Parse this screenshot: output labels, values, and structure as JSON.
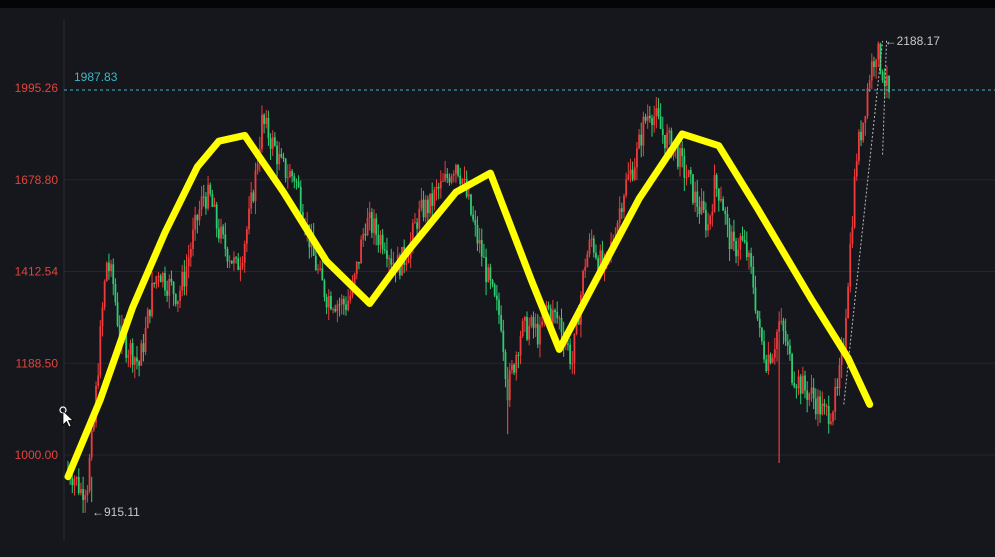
{
  "chart_data": {
    "type": "candlestick",
    "title": "",
    "xlabel": "",
    "ylabel": "",
    "y_ticks": [
      1000.0,
      1188.5,
      1412.54,
      1678.8,
      1995.26
    ],
    "y_tick_labels": [
      "1000.00",
      "1188.50",
      "1412.54",
      "1678.80",
      "1995.26"
    ],
    "log_scale": true,
    "ylim": [
      845,
      2400
    ],
    "grid": true,
    "colors": {
      "up": "#ef3b3b",
      "down": "#2ecc71",
      "trend": "#ffff00",
      "reference": "#3fb6c8",
      "axis_label": "#e0453d"
    },
    "reference_line": {
      "value": 1987.83,
      "label": "1987.83"
    },
    "annotations": {
      "high": {
        "value": 2188.17,
        "label": "←2188.17"
      },
      "low": {
        "value": 915.11,
        "label": "←915.11"
      }
    },
    "trend_line": {
      "color": "#ffff00",
      "points": [
        [
          0,
          960
        ],
        [
          15,
          1110
        ],
        [
          30,
          1320
        ],
        [
          45,
          1520
        ],
        [
          60,
          1720
        ],
        [
          70,
          1805
        ],
        [
          82,
          1825
        ],
        [
          100,
          1640
        ],
        [
          120,
          1440
        ],
        [
          140,
          1330
        ],
        [
          158,
          1470
        ],
        [
          180,
          1640
        ],
        [
          196,
          1700
        ],
        [
          215,
          1390
        ],
        [
          228,
          1220
        ],
        [
          245,
          1390
        ],
        [
          265,
          1620
        ],
        [
          285,
          1830
        ],
        [
          302,
          1790
        ],
        [
          320,
          1590
        ],
        [
          345,
          1340
        ],
        [
          362,
          1200
        ],
        [
          372,
          1100
        ]
      ]
    },
    "price_path": [
      [
        0,
        975
      ],
      [
        3,
        960
      ],
      [
        6,
        935
      ],
      [
        9,
        950
      ],
      [
        12,
        1060
      ],
      [
        15,
        1250
      ],
      [
        18,
        1440
      ],
      [
        21,
        1380
      ],
      [
        24,
        1250
      ],
      [
        27,
        1230
      ],
      [
        30,
        1215
      ],
      [
        33,
        1185
      ],
      [
        36,
        1260
      ],
      [
        39,
        1360
      ],
      [
        42,
        1420
      ],
      [
        45,
        1390
      ],
      [
        48,
        1370
      ],
      [
        51,
        1350
      ],
      [
        54,
        1400
      ],
      [
        57,
        1480
      ],
      [
        60,
        1560
      ],
      [
        63,
        1630
      ],
      [
        66,
        1620
      ],
      [
        69,
        1540
      ],
      [
        72,
        1490
      ],
      [
        75,
        1460
      ],
      [
        78,
        1420
      ],
      [
        81,
        1470
      ],
      [
        84,
        1560
      ],
      [
        87,
        1690
      ],
      [
        90,
        1870
      ],
      [
        93,
        1830
      ],
      [
        96,
        1780
      ],
      [
        99,
        1720
      ],
      [
        102,
        1700
      ],
      [
        105,
        1690
      ],
      [
        108,
        1620
      ],
      [
        111,
        1530
      ],
      [
        114,
        1450
      ],
      [
        117,
        1390
      ],
      [
        120,
        1350
      ],
      [
        123,
        1340
      ],
      [
        126,
        1330
      ],
      [
        129,
        1330
      ],
      [
        132,
        1360
      ],
      [
        135,
        1450
      ],
      [
        138,
        1550
      ],
      [
        141,
        1540
      ],
      [
        144,
        1510
      ],
      [
        147,
        1500
      ],
      [
        150,
        1450
      ],
      [
        153,
        1430
      ],
      [
        156,
        1450
      ],
      [
        159,
        1490
      ],
      [
        162,
        1560
      ],
      [
        165,
        1590
      ],
      [
        168,
        1600
      ],
      [
        171,
        1640
      ],
      [
        174,
        1660
      ],
      [
        177,
        1700
      ],
      [
        180,
        1740
      ],
      [
        183,
        1680
      ],
      [
        186,
        1600
      ],
      [
        189,
        1520
      ],
      [
        192,
        1460
      ],
      [
        195,
        1390
      ],
      [
        198,
        1330
      ],
      [
        201,
        1290
      ],
      [
        204,
        1130
      ],
      [
        207,
        1190
      ],
      [
        210,
        1260
      ],
      [
        213,
        1270
      ],
      [
        216,
        1270
      ],
      [
        219,
        1250
      ],
      [
        222,
        1320
      ],
      [
        225,
        1300
      ],
      [
        228,
        1290
      ],
      [
        231,
        1240
      ],
      [
        234,
        1190
      ],
      [
        237,
        1310
      ],
      [
        240,
        1440
      ],
      [
        243,
        1500
      ],
      [
        246,
        1450
      ],
      [
        249,
        1410
      ],
      [
        252,
        1480
      ],
      [
        255,
        1560
      ],
      [
        258,
        1650
      ],
      [
        261,
        1700
      ],
      [
        264,
        1760
      ],
      [
        267,
        1860
      ],
      [
        270,
        1920
      ],
      [
        273,
        1880
      ],
      [
        276,
        1830
      ],
      [
        279,
        1800
      ],
      [
        282,
        1780
      ],
      [
        285,
        1720
      ],
      [
        288,
        1680
      ],
      [
        291,
        1620
      ],
      [
        294,
        1580
      ],
      [
        297,
        1540
      ],
      [
        300,
        1660
      ],
      [
        303,
        1640
      ],
      [
        306,
        1520
      ],
      [
        309,
        1470
      ],
      [
        312,
        1500
      ],
      [
        315,
        1460
      ],
      [
        318,
        1380
      ],
      [
        321,
        1250
      ],
      [
        324,
        1200
      ],
      [
        327,
        1220
      ],
      [
        330,
        1280
      ],
      [
        333,
        1240
      ],
      [
        336,
        1170
      ],
      [
        339,
        1150
      ],
      [
        342,
        1130
      ],
      [
        345,
        1120
      ],
      [
        348,
        1100
      ],
      [
        351,
        1080
      ],
      [
        354,
        1090
      ],
      [
        357,
        1120
      ],
      [
        360,
        1240
      ],
      [
        363,
        1480
      ],
      [
        366,
        1760
      ],
      [
        369,
        1880
      ],
      [
        372,
        2050
      ],
      [
        375,
        2150
      ],
      [
        378,
        2060
      ],
      [
        381,
        1960
      ]
    ]
  }
}
